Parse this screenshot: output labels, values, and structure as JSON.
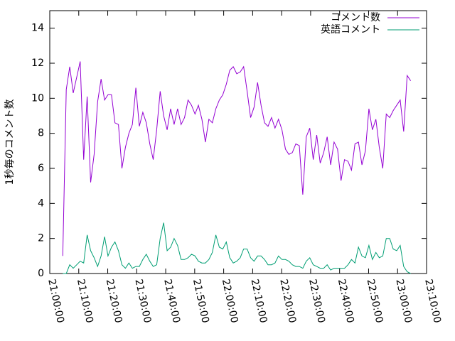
{
  "chart_data": {
    "type": "line",
    "y_label": "1秒毎のコメント数",
    "x": [
      "21:04:30",
      "21:05:42",
      "21:06:54",
      "21:08:06",
      "21:09:18",
      "21:10:30",
      "21:11:42",
      "21:12:54",
      "21:14:06",
      "21:15:18",
      "21:16:30",
      "21:17:42",
      "21:18:54",
      "21:20:06",
      "21:21:18",
      "21:22:30",
      "21:23:42",
      "21:24:54",
      "21:26:06",
      "21:27:18",
      "21:28:30",
      "21:29:42",
      "21:30:54",
      "21:32:06",
      "21:33:18",
      "21:34:30",
      "21:35:42",
      "21:36:54",
      "21:38:06",
      "21:39:18",
      "21:40:30",
      "21:41:42",
      "21:42:54",
      "21:44:06",
      "21:45:18",
      "21:46:30",
      "21:47:42",
      "21:48:54",
      "21:50:06",
      "21:51:18",
      "21:52:30",
      "21:53:42",
      "21:54:54",
      "21:56:06",
      "21:57:18",
      "21:58:30",
      "21:59:42",
      "22:00:54",
      "22:02:06",
      "22:03:18",
      "22:04:30",
      "22:05:42",
      "22:06:54",
      "22:08:06",
      "22:09:18",
      "22:10:30",
      "22:11:42",
      "22:12:54",
      "22:14:06",
      "22:15:18",
      "22:16:30",
      "22:17:42",
      "22:18:54",
      "22:20:06",
      "22:21:18",
      "22:22:30",
      "22:23:42",
      "22:24:54",
      "22:26:06",
      "22:27:18",
      "22:28:30",
      "22:29:42",
      "22:30:54",
      "22:32:06",
      "22:33:18",
      "22:34:30",
      "22:35:42",
      "22:36:54",
      "22:38:06",
      "22:39:18",
      "22:40:30",
      "22:41:42",
      "22:42:54",
      "22:44:06",
      "22:45:18",
      "22:46:30",
      "22:47:42",
      "22:48:54",
      "22:50:06",
      "22:51:18",
      "22:52:30",
      "22:53:42",
      "22:54:54",
      "22:56:06",
      "22:57:18",
      "22:58:30",
      "22:59:42",
      "23:00:54",
      "23:02:06",
      "23:03:18",
      "23:04:30"
    ],
    "series": [
      {
        "name": "コメント数",
        "color": "#9400d3",
        "values": [
          1.0,
          10.5,
          11.8,
          10.3,
          11.2,
          12.1,
          6.5,
          10.1,
          5.2,
          6.8,
          9.8,
          11.1,
          9.9,
          10.2,
          10.2,
          8.6,
          8.5,
          6.0,
          7.2,
          8.0,
          8.5,
          10.6,
          8.4,
          9.2,
          8.6,
          7.4,
          6.5,
          8.2,
          10.4,
          9.0,
          8.2,
          9.4,
          8.5,
          9.4,
          8.5,
          8.9,
          9.9,
          9.6,
          9.1,
          9.6,
          8.8,
          7.5,
          8.8,
          8.6,
          9.4,
          9.9,
          10.2,
          10.8,
          11.6,
          11.8,
          11.4,
          11.5,
          11.8,
          10.4,
          8.9,
          9.5,
          10.9,
          9.6,
          8.6,
          8.4,
          8.9,
          8.3,
          8.8,
          8.2,
          7.1,
          6.8,
          6.9,
          7.4,
          7.3,
          4.5,
          7.8,
          8.3,
          6.5,
          7.9,
          6.3,
          6.9,
          7.8,
          6.2,
          7.5,
          7.1,
          5.3,
          6.5,
          6.4,
          5.9,
          7.4,
          7.5,
          6.2,
          7.0,
          9.4,
          8.2,
          8.8,
          7.2,
          6.0,
          9.1,
          8.9,
          9.3,
          9.6,
          9.9,
          8.1,
          11.3,
          11.0
        ]
      },
      {
        "name": "英語コメント",
        "color": "#009e73",
        "values": [
          0,
          0,
          0.5,
          0.3,
          0.5,
          0.7,
          0.6,
          2.2,
          1.3,
          0.9,
          0.4,
          1.0,
          2.1,
          1.0,
          1.5,
          1.8,
          1.3,
          0.5,
          0.3,
          0.6,
          0.3,
          0.4,
          0.4,
          0.8,
          1.1,
          0.7,
          0.4,
          0.5,
          2.0,
          2.9,
          1.3,
          1.5,
          2.0,
          1.6,
          0.8,
          0.8,
          0.9,
          1.1,
          1.0,
          0.7,
          0.6,
          0.6,
          0.8,
          1.2,
          2.2,
          1.5,
          1.4,
          1.8,
          0.9,
          0.6,
          0.7,
          0.9,
          1.4,
          1.4,
          0.9,
          0.7,
          1.0,
          1.0,
          0.8,
          0.5,
          0.5,
          0.6,
          1.0,
          0.8,
          0.8,
          0.7,
          0.5,
          0.4,
          0.4,
          0.3,
          0.7,
          0.9,
          0.5,
          0.4,
          0.3,
          0.3,
          0.5,
          0.2,
          0.3,
          0.3,
          0.3,
          0.3,
          0.5,
          0.8,
          0.6,
          1.5,
          1.0,
          0.9,
          1.6,
          0.8,
          1.2,
          0.9,
          1.0,
          2.0,
          2.0,
          1.4,
          1.3,
          1.6,
          0.4,
          0.1,
          0
        ]
      }
    ],
    "xlim": [
      "21:00:00",
      "23:10:00"
    ],
    "xticks": [
      "21:00:00",
      "21:10:00",
      "21:20:00",
      "21:30:00",
      "21:40:00",
      "21:50:00",
      "22:00:00",
      "22:10:00",
      "22:20:00",
      "22:30:00",
      "22:40:00",
      "22:50:00",
      "23:00:00",
      "23:10:00"
    ],
    "ylim": [
      0,
      15
    ],
    "yticks": [
      0,
      2,
      4,
      6,
      8,
      10,
      12,
      14
    ],
    "legend": "top right",
    "grid": false
  }
}
